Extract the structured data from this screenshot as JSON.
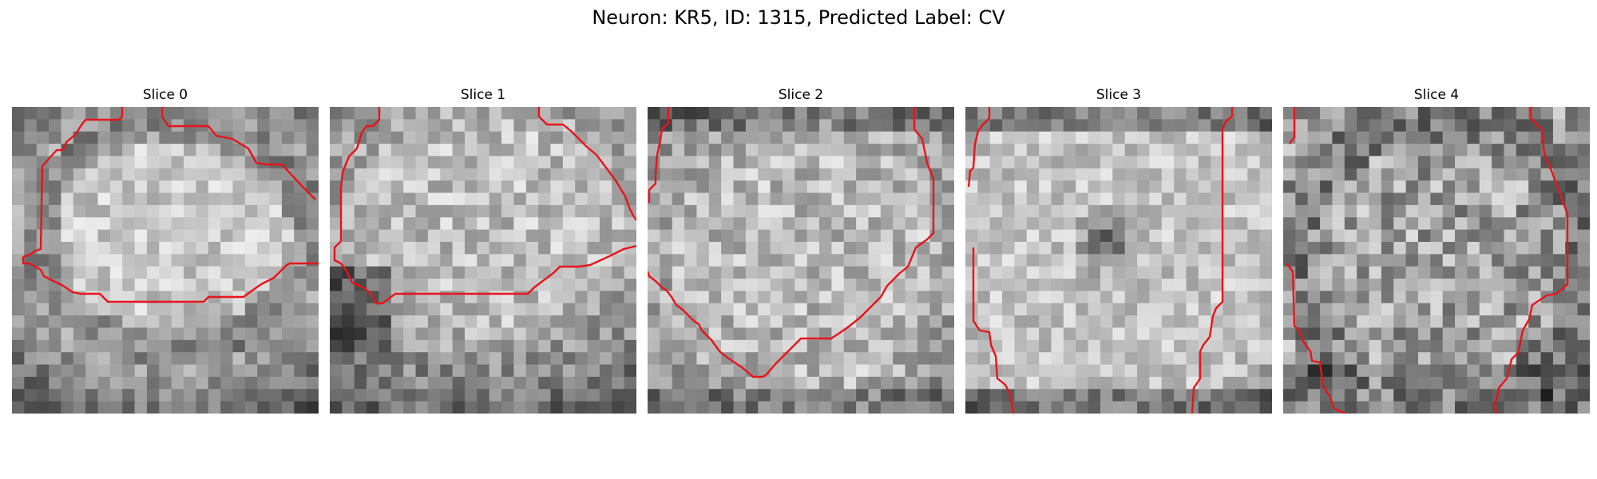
{
  "figure": {
    "title": "Neuron: KR5, ID: 1315, Predicted Label: CV",
    "colors": {
      "contour": "#e8141b",
      "background": "#ffffff"
    },
    "panels": [
      {
        "title": "Slice 0",
        "image": "grayscale-microscopy-slice-0",
        "segmentation": "red-contour"
      },
      {
        "title": "Slice 1",
        "image": "grayscale-microscopy-slice-1",
        "segmentation": "red-contour"
      },
      {
        "title": "Slice 2",
        "image": "grayscale-microscopy-slice-2",
        "segmentation": "red-contour"
      },
      {
        "title": "Slice 3",
        "image": "grayscale-microscopy-slice-3",
        "segmentation": "red-contour"
      },
      {
        "title": "Slice 4",
        "image": "grayscale-microscopy-slice-4",
        "segmentation": "red-contour"
      }
    ]
  }
}
